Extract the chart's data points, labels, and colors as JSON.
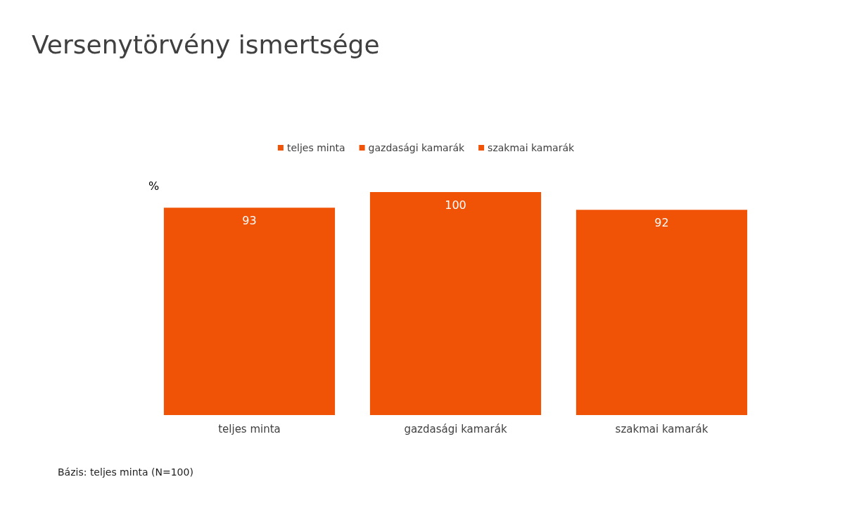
{
  "chart_data": {
    "type": "bar",
    "title": "Versenytörvény ismertsége",
    "ylabel": "%",
    "categories": [
      "teljes minta",
      "gazdasági kamarák",
      "szakmai kamarák"
    ],
    "series": [
      {
        "name": "teljes minta",
        "color": "#f05206",
        "values": [
          93,
          null,
          null
        ]
      },
      {
        "name": "gazdasági kamarák",
        "color": "#f05206",
        "values": [
          null,
          100,
          null
        ]
      },
      {
        "name": "szakmai kamarák",
        "color": "#f05206",
        "values": [
          null,
          null,
          92
        ]
      }
    ],
    "data_labels": true,
    "legend": "top",
    "annotations": [
      "Bázis: teljes minta (N=100)"
    ]
  }
}
